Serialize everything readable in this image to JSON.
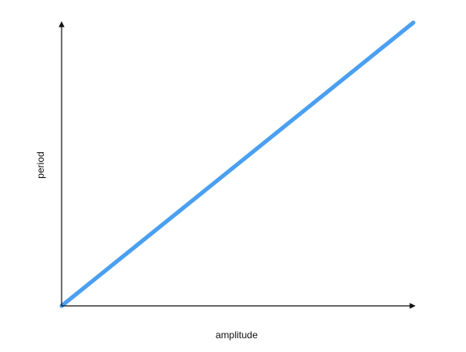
{
  "chart_data": {
    "type": "line",
    "xlabel": "amplitude",
    "ylabel": "period",
    "x_ticks": false,
    "y_ticks": false,
    "grid": false,
    "legend": "none",
    "xlim": [
      0,
      1
    ],
    "ylim": [
      0,
      1
    ],
    "series": [
      {
        "x": [
          0,
          1
        ],
        "y": [
          0,
          1
        ],
        "color": "#4a9ff0"
      }
    ],
    "axis_color": "#111111"
  }
}
